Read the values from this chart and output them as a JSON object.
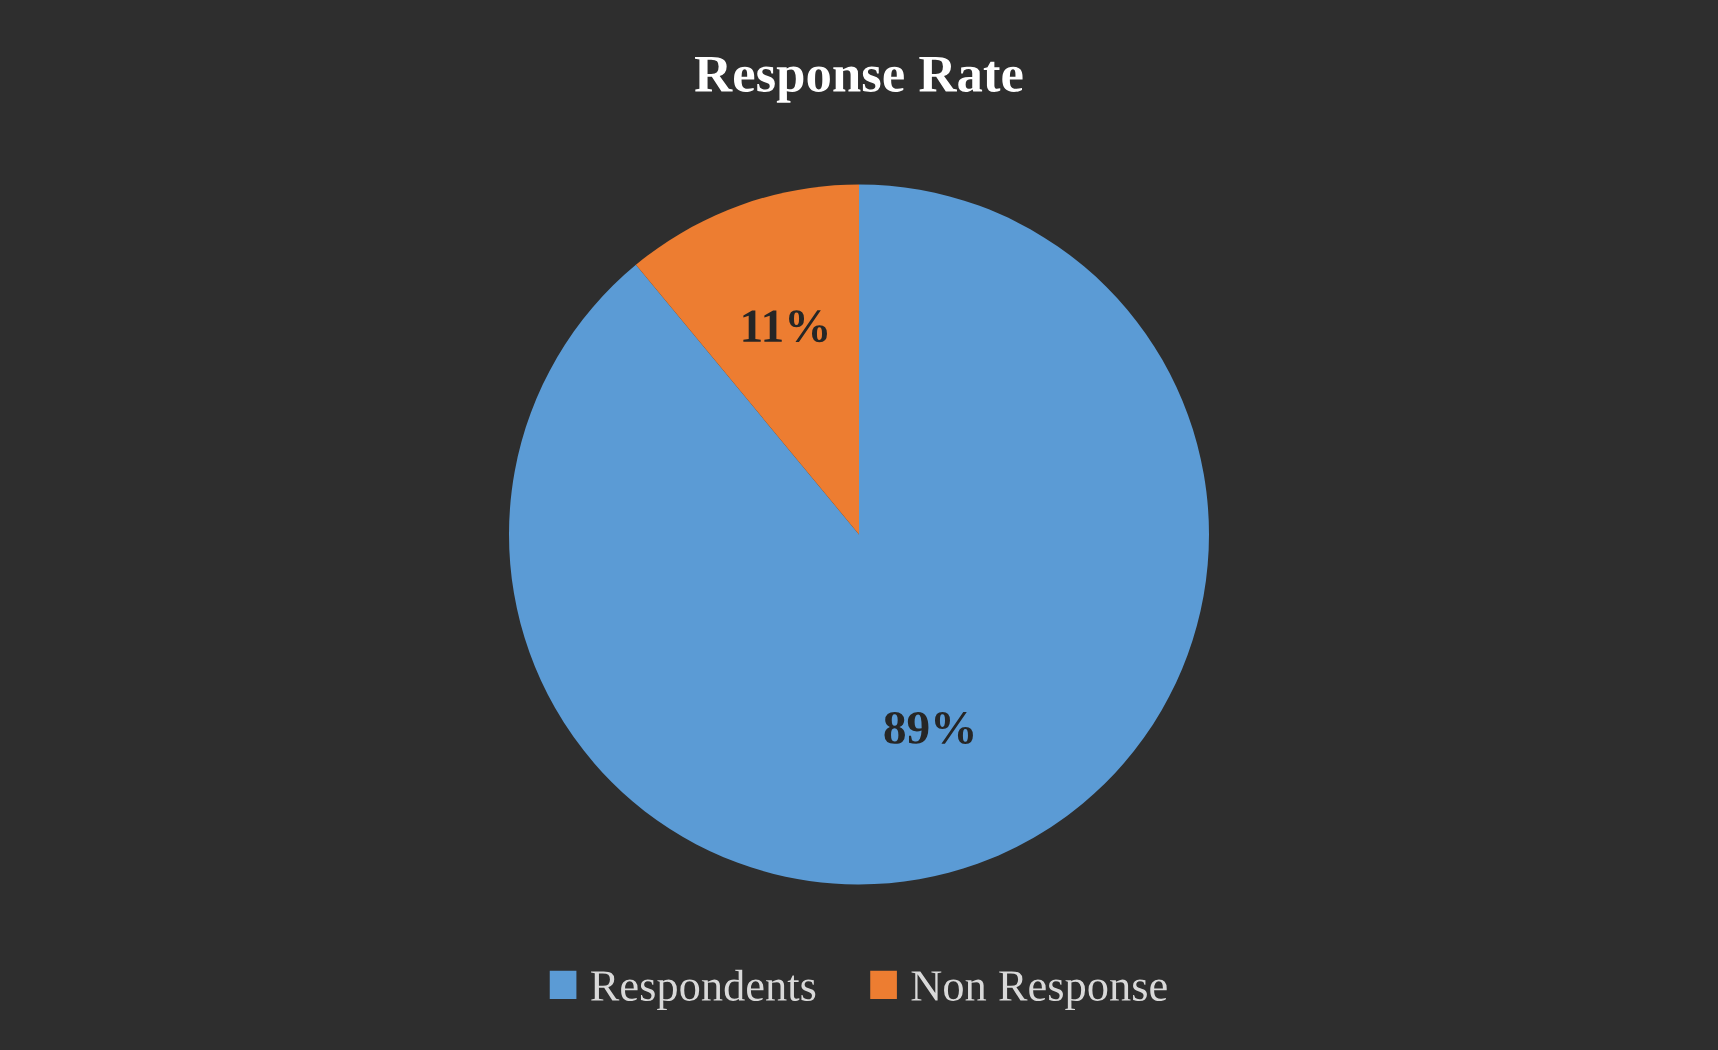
{
  "chart_data": {
    "type": "pie",
    "title": "Response Rate",
    "categories": [
      "Respondents",
      "Non Response"
    ],
    "values": [
      89,
      11
    ],
    "colors": [
      "#5b9bd5",
      "#ed7d31"
    ],
    "value_labels": [
      "89%",
      "11%"
    ],
    "legend": "bottom"
  }
}
